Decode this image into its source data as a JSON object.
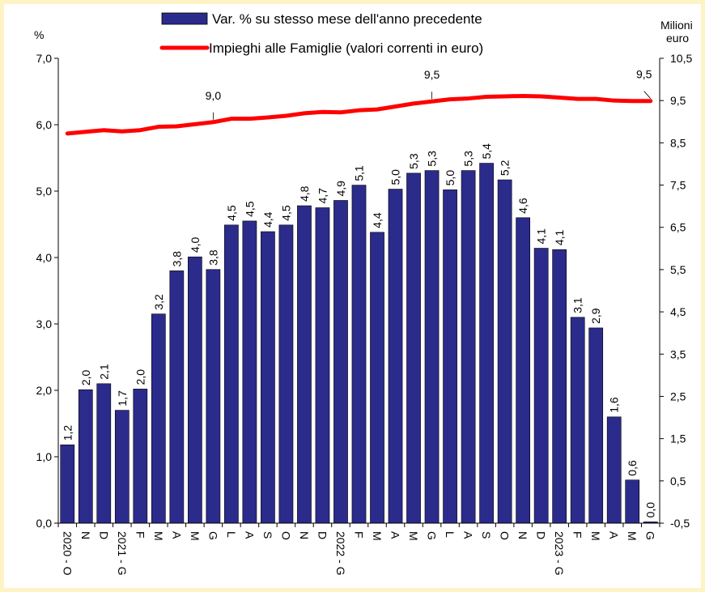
{
  "chart_data": {
    "type": "bar",
    "left_axis": {
      "title": "%",
      "ylim": [
        0,
        7
      ],
      "ticks": [
        "0,0",
        "1,0",
        "2,0",
        "3,0",
        "4,0",
        "5,0",
        "6,0",
        "7,0"
      ]
    },
    "right_axis": {
      "title_lines": [
        "Milioni",
        "euro"
      ],
      "ylim": [
        -0.5,
        10.5
      ],
      "ticks": [
        "-0,5",
        "0,5",
        "1,5",
        "2,5",
        "3,5",
        "4,5",
        "5,5",
        "6,5",
        "7,5",
        "8,5",
        "9,5",
        "10,5"
      ]
    },
    "categories": [
      "2020 - O",
      "N",
      "D",
      "2021 - G",
      "F",
      "M",
      "A",
      "M",
      "G",
      "L",
      "A",
      "S",
      "O",
      "N",
      "D",
      "2022 - G",
      "F",
      "M",
      "A",
      "M",
      "G",
      "L",
      "A",
      "S",
      "O",
      "N",
      "D",
      "2023 - G",
      "F",
      "M",
      "A",
      "M",
      "G"
    ],
    "series": [
      {
        "name": "Var. % su stesso mese dell'anno precedente",
        "type": "bar",
        "axis": "left",
        "color": "#2b2b8c",
        "values": [
          1.18,
          2.01,
          2.1,
          1.7,
          2.02,
          3.15,
          3.8,
          4.01,
          3.82,
          4.49,
          4.55,
          4.39,
          4.49,
          4.78,
          4.75,
          4.86,
          5.09,
          4.38,
          5.03,
          5.27,
          5.31,
          5.02,
          5.31,
          5.42,
          5.17,
          4.6,
          4.14,
          4.12,
          3.1,
          2.94,
          1.6,
          0.65,
          0.02
        ],
        "labels": [
          "1,2",
          "2,0",
          "2,1",
          "1,7",
          "2,0",
          "3,2",
          "3,8",
          "4,0",
          "3,8",
          "4,5",
          "4,5",
          "4,4",
          "4,5",
          "4,8",
          "4,7",
          "4,9",
          "5,1",
          "4,4",
          "5,0",
          "5,3",
          "5,3",
          "5,0",
          "5,3",
          "5,4",
          "5,2",
          "4,6",
          "4,1",
          "4,1",
          "3,1",
          "2,9",
          "1,6",
          "0,6",
          "0,0"
        ]
      },
      {
        "name": "Impieghi alle Famiglie (valori correnti in euro)",
        "type": "line",
        "axis": "right",
        "color": "#ff0000",
        "values": [
          8.72,
          8.76,
          8.8,
          8.77,
          8.8,
          8.88,
          8.89,
          8.94,
          8.99,
          9.07,
          9.07,
          9.1,
          9.14,
          9.2,
          9.23,
          9.22,
          9.27,
          9.29,
          9.36,
          9.43,
          9.48,
          9.53,
          9.55,
          9.59,
          9.6,
          9.61,
          9.6,
          9.57,
          9.54,
          9.54,
          9.5,
          9.49,
          9.49
        ],
        "annotations": [
          {
            "index": 8,
            "label": "9,0"
          },
          {
            "index": 20,
            "label": "9,5"
          },
          {
            "index": 32,
            "label": "9,5"
          }
        ]
      }
    ],
    "legend_position": "top-center",
    "grid": false
  }
}
